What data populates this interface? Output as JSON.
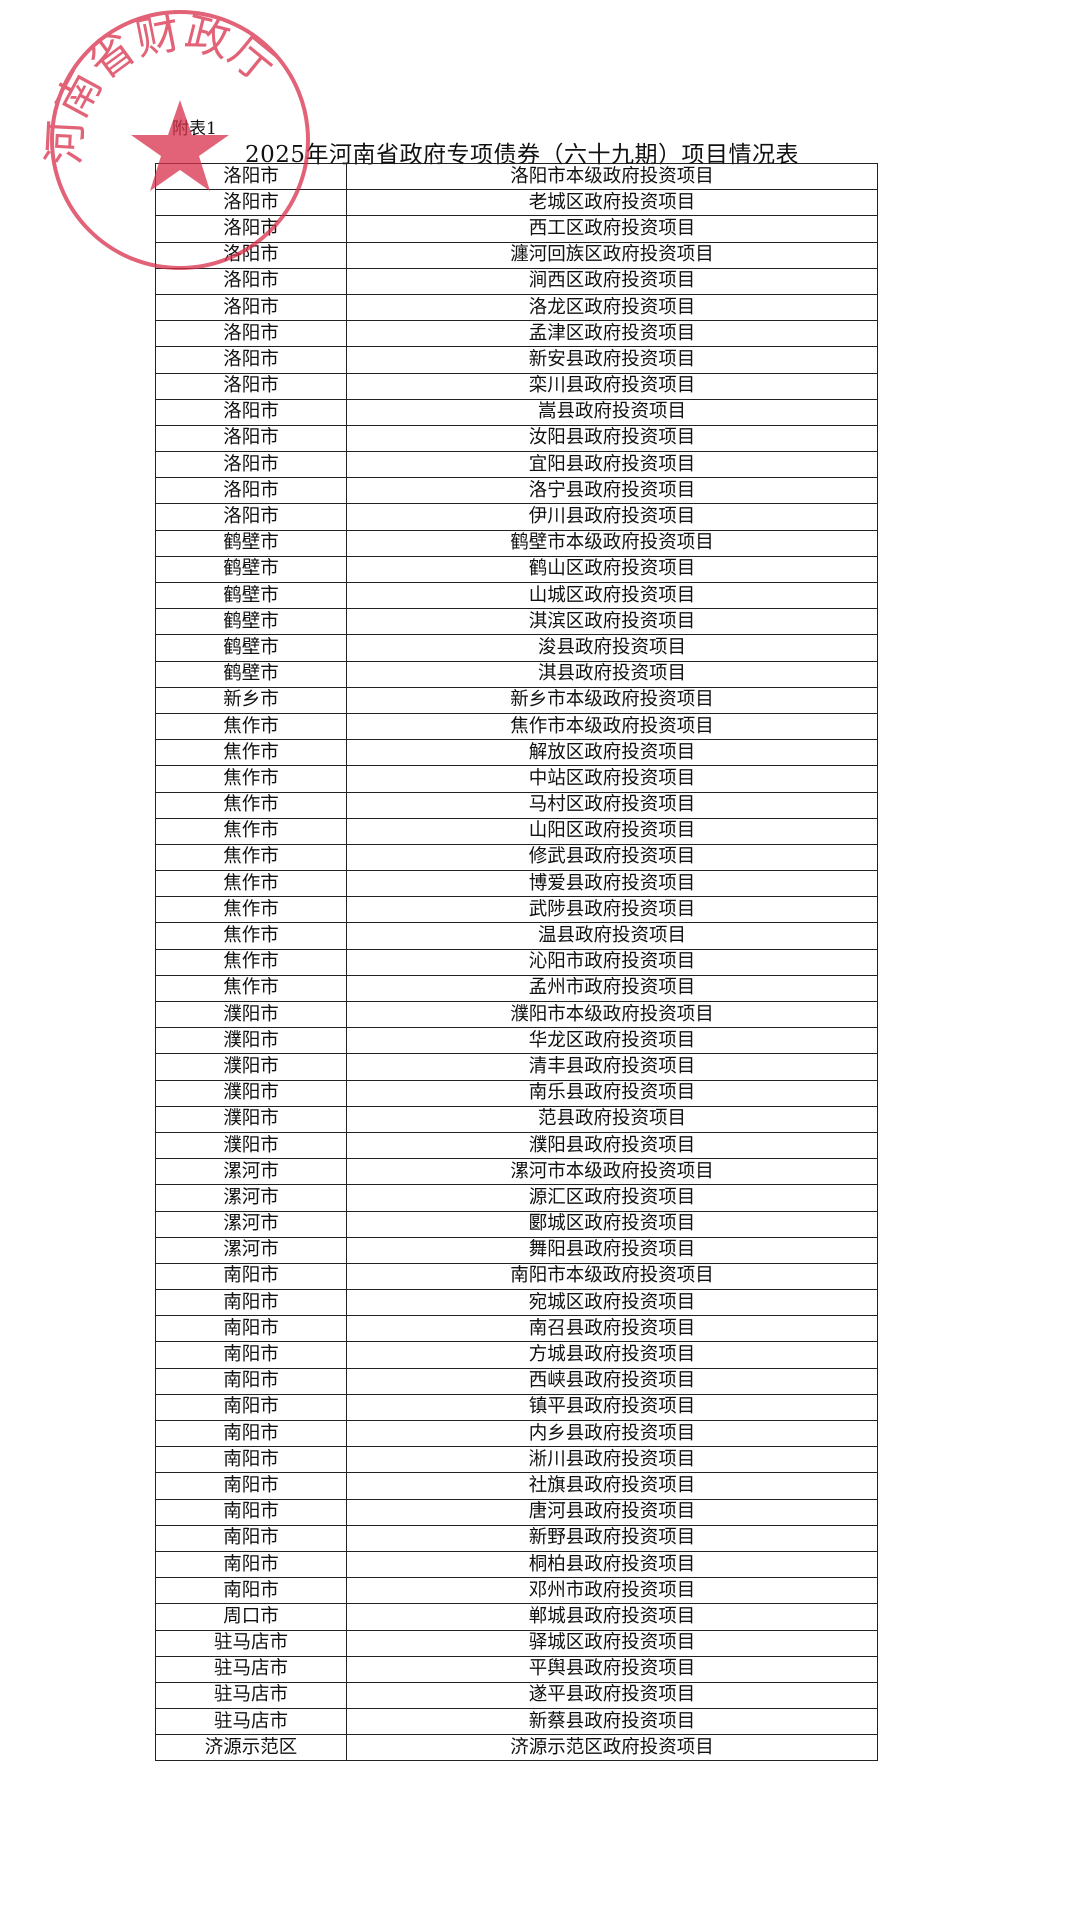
{
  "annex_label": "附表1",
  "title": "2025年河南省政府专项债券（六十九期）项目情况表",
  "seal": {
    "text": "河南省财政厅",
    "color": "#d9304a"
  },
  "rows": [
    [
      "洛阳市",
      "洛阳市本级政府投资项目"
    ],
    [
      "洛阳市",
      "老城区政府投资项目"
    ],
    [
      "洛阳市",
      "西工区政府投资项目"
    ],
    [
      "洛阳市",
      "瀍河回族区政府投资项目"
    ],
    [
      "洛阳市",
      "涧西区政府投资项目"
    ],
    [
      "洛阳市",
      "洛龙区政府投资项目"
    ],
    [
      "洛阳市",
      "孟津区政府投资项目"
    ],
    [
      "洛阳市",
      "新安县政府投资项目"
    ],
    [
      "洛阳市",
      "栾川县政府投资项目"
    ],
    [
      "洛阳市",
      "嵩县政府投资项目"
    ],
    [
      "洛阳市",
      "汝阳县政府投资项目"
    ],
    [
      "洛阳市",
      "宜阳县政府投资项目"
    ],
    [
      "洛阳市",
      "洛宁县政府投资项目"
    ],
    [
      "洛阳市",
      "伊川县政府投资项目"
    ],
    [
      "鹤壁市",
      "鹤壁市本级政府投资项目"
    ],
    [
      "鹤壁市",
      "鹤山区政府投资项目"
    ],
    [
      "鹤壁市",
      "山城区政府投资项目"
    ],
    [
      "鹤壁市",
      "淇滨区政府投资项目"
    ],
    [
      "鹤壁市",
      "浚县政府投资项目"
    ],
    [
      "鹤壁市",
      "淇县政府投资项目"
    ],
    [
      "新乡市",
      "新乡市本级政府投资项目"
    ],
    [
      "焦作市",
      "焦作市本级政府投资项目"
    ],
    [
      "焦作市",
      "解放区政府投资项目"
    ],
    [
      "焦作市",
      "中站区政府投资项目"
    ],
    [
      "焦作市",
      "马村区政府投资项目"
    ],
    [
      "焦作市",
      "山阳区政府投资项目"
    ],
    [
      "焦作市",
      "修武县政府投资项目"
    ],
    [
      "焦作市",
      "博爱县政府投资项目"
    ],
    [
      "焦作市",
      "武陟县政府投资项目"
    ],
    [
      "焦作市",
      "温县政府投资项目"
    ],
    [
      "焦作市",
      "沁阳市政府投资项目"
    ],
    [
      "焦作市",
      "孟州市政府投资项目"
    ],
    [
      "濮阳市",
      "濮阳市本级政府投资项目"
    ],
    [
      "濮阳市",
      "华龙区政府投资项目"
    ],
    [
      "濮阳市",
      "清丰县政府投资项目"
    ],
    [
      "濮阳市",
      "南乐县政府投资项目"
    ],
    [
      "濮阳市",
      "范县政府投资项目"
    ],
    [
      "濮阳市",
      "濮阳县政府投资项目"
    ],
    [
      "漯河市",
      "漯河市本级政府投资项目"
    ],
    [
      "漯河市",
      "源汇区政府投资项目"
    ],
    [
      "漯河市",
      "郾城区政府投资项目"
    ],
    [
      "漯河市",
      "舞阳县政府投资项目"
    ],
    [
      "南阳市",
      "南阳市本级政府投资项目"
    ],
    [
      "南阳市",
      "宛城区政府投资项目"
    ],
    [
      "南阳市",
      "南召县政府投资项目"
    ],
    [
      "南阳市",
      "方城县政府投资项目"
    ],
    [
      "南阳市",
      "西峡县政府投资项目"
    ],
    [
      "南阳市",
      "镇平县政府投资项目"
    ],
    [
      "南阳市",
      "内乡县政府投资项目"
    ],
    [
      "南阳市",
      "淅川县政府投资项目"
    ],
    [
      "南阳市",
      "社旗县政府投资项目"
    ],
    [
      "南阳市",
      "唐河县政府投资项目"
    ],
    [
      "南阳市",
      "新野县政府投资项目"
    ],
    [
      "南阳市",
      "桐柏县政府投资项目"
    ],
    [
      "南阳市",
      "邓州市政府投资项目"
    ],
    [
      "周口市",
      "郸城县政府投资项目"
    ],
    [
      "驻马店市",
      "驿城区政府投资项目"
    ],
    [
      "驻马店市",
      "平舆县政府投资项目"
    ],
    [
      "驻马店市",
      "遂平县政府投资项目"
    ],
    [
      "驻马店市",
      "新蔡县政府投资项目"
    ],
    [
      "济源示范区",
      "济源示范区政府投资项目"
    ]
  ]
}
